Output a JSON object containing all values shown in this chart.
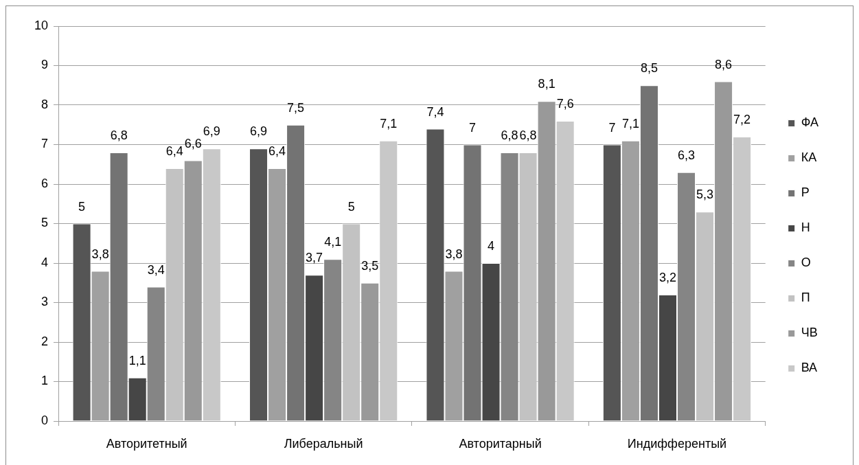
{
  "chart_data": {
    "type": "bar",
    "categories": [
      "Авторитетный",
      "Либеральный",
      "Авторитарный",
      "Индифферентый"
    ],
    "series": [
      {
        "name": "ФА",
        "color": "#555555",
        "values": [
          5,
          6.9,
          7.4,
          7
        ],
        "value_labels": [
          "5",
          "6,9",
          "7,4",
          "7"
        ]
      },
      {
        "name": "КА",
        "color": "#a0a0a0",
        "values": [
          3.8,
          6.4,
          3.8,
          7.1
        ],
        "value_labels": [
          "3,8",
          "6,4",
          "3,8",
          "7,1"
        ]
      },
      {
        "name": "Р",
        "color": "#737373",
        "values": [
          6.8,
          7.5,
          7,
          8.5
        ],
        "value_labels": [
          "6,8",
          "7,5",
          "7",
          "8,5"
        ]
      },
      {
        "name": "Н",
        "color": "#464646",
        "values": [
          1.1,
          3.7,
          4,
          3.2
        ],
        "value_labels": [
          "1,1",
          "3,7",
          "4",
          "3,2"
        ]
      },
      {
        "name": "О",
        "color": "#858585",
        "values": [
          3.4,
          4.1,
          6.8,
          6.3
        ],
        "value_labels": [
          "3,4",
          "4,1",
          "6,8",
          "6,3"
        ]
      },
      {
        "name": "П",
        "color": "#c2c2c2",
        "values": [
          6.4,
          5,
          6.8,
          5.3
        ],
        "value_labels": [
          "6,4",
          "5",
          "6,8",
          "5,3"
        ]
      },
      {
        "name": "ЧВ",
        "color": "#999999",
        "values": [
          6.6,
          3.5,
          8.1,
          8.6
        ],
        "value_labels": [
          "6,6",
          "3,5",
          "8,1",
          "8,6"
        ]
      },
      {
        "name": "ВА",
        "color": "#c8c8c8",
        "values": [
          6.9,
          7.1,
          7.6,
          7.2
        ],
        "value_labels": [
          "6,9",
          "7,1",
          "7,6",
          "7,2"
        ]
      }
    ],
    "ylim": [
      0,
      10
    ],
    "yticks": [
      0,
      1,
      2,
      3,
      4,
      5,
      6,
      7,
      8,
      9,
      10
    ],
    "grid": "y",
    "legend": "right"
  }
}
